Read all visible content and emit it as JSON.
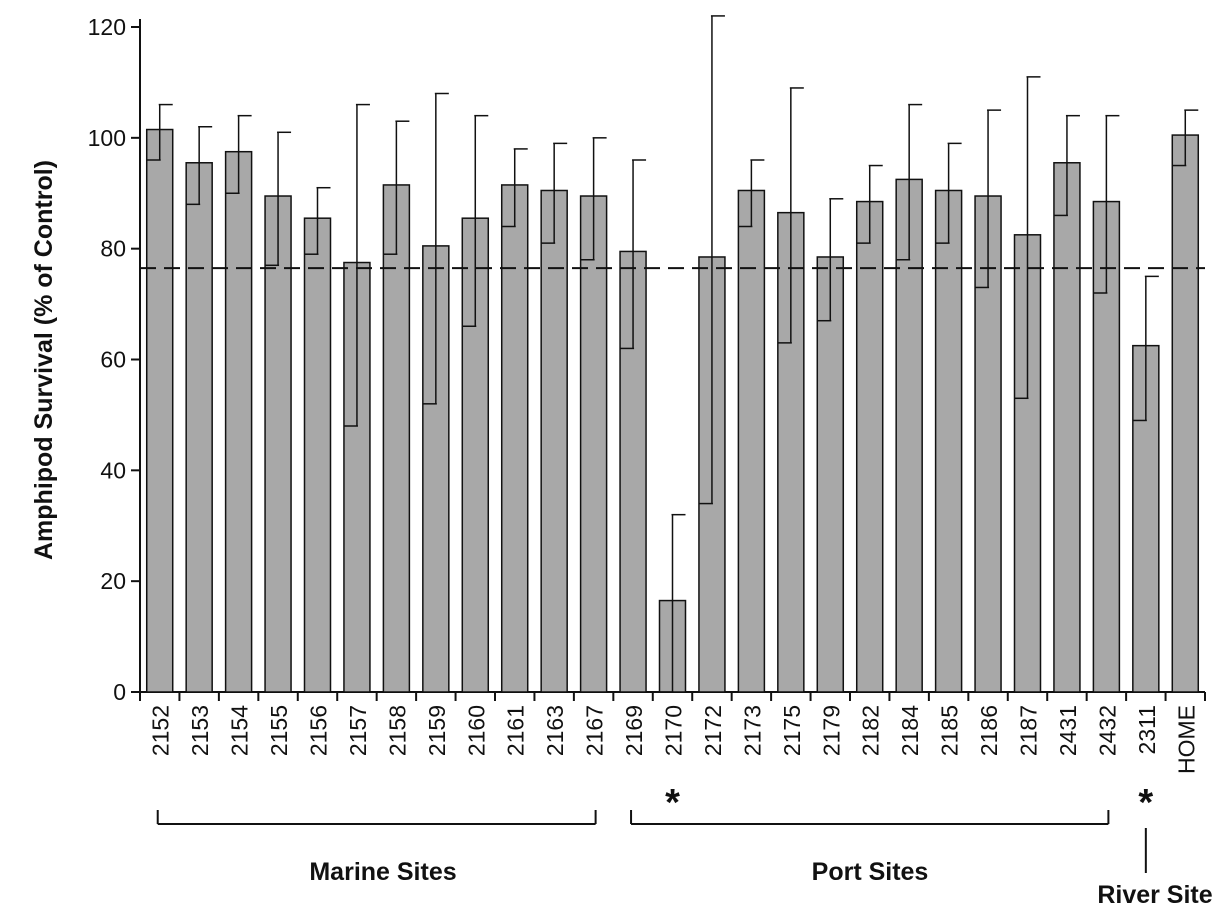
{
  "chart_data": {
    "type": "bar",
    "title": "",
    "xlabel": "",
    "ylabel": "Amphipod Survival (% of Control)",
    "ylim": [
      0,
      120
    ],
    "yticks": [
      0,
      20,
      40,
      60,
      80,
      100,
      120
    ],
    "grid": false,
    "reference_line": {
      "y": 76.5,
      "style": "dashed"
    },
    "categories": [
      "2152",
      "2153",
      "2154",
      "2155",
      "2156",
      "2157",
      "2158",
      "2159",
      "2160",
      "2161",
      "2163",
      "2167",
      "2169",
      "2170",
      "2172",
      "2173",
      "2175",
      "2179",
      "2182",
      "2184",
      "2185",
      "2186",
      "2187",
      "2431",
      "2432",
      "2311",
      "HOME"
    ],
    "values": [
      101.5,
      95.5,
      97.5,
      89.5,
      85.5,
      77.5,
      91.5,
      80.5,
      85.5,
      91.5,
      90.5,
      89.5,
      79.5,
      16.5,
      78.5,
      90.5,
      86.5,
      78.5,
      88.5,
      92.5,
      90.5,
      89.5,
      82.5,
      95.5,
      88.5,
      62.5,
      100.5
    ],
    "error_plus": [
      4.5,
      6.5,
      6.5,
      11.5,
      5.5,
      28.5,
      11.5,
      27.5,
      18.5,
      6.5,
      8.5,
      10.5,
      16.5,
      15.5,
      43.5,
      5.5,
      22.5,
      10.5,
      6.5,
      13.5,
      8.5,
      15.5,
      28.5,
      8.5,
      15.5,
      12.5,
      4.5
    ],
    "error_minus": [
      5.5,
      7.5,
      7.5,
      12.5,
      6.5,
      29.5,
      12.5,
      28.5,
      19.5,
      7.5,
      9.5,
      11.5,
      17.5,
      16.5,
      44.5,
      6.5,
      23.5,
      11.5,
      7.5,
      14.5,
      9.5,
      16.5,
      29.5,
      9.5,
      16.5,
      13.5,
      5.5
    ],
    "significant": [
      "2170",
      "2311"
    ],
    "groups": [
      {
        "label": "Marine Sites",
        "start": "2152",
        "end": "2167"
      },
      {
        "label": "Port Sites",
        "start": "2169",
        "end": "2432"
      },
      {
        "label": "River Site",
        "start": "2311",
        "end": "2311"
      }
    ],
    "annotations": [
      "*",
      "*"
    ],
    "colors": {
      "bar_fill": "#a8a8a8",
      "bar_stroke": "#111111"
    }
  }
}
